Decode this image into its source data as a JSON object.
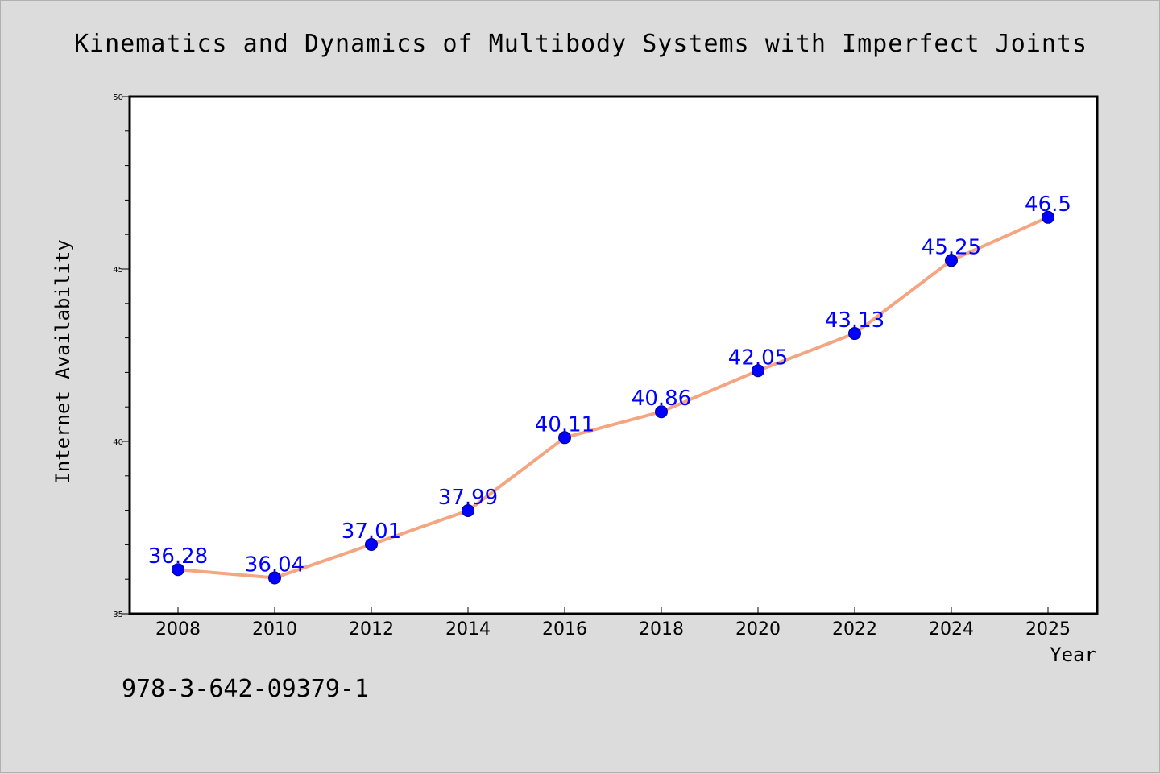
{
  "chart_data": {
    "type": "line",
    "title": "Kinematics and Dynamics of Multibody Systems with Imperfect Joints",
    "xlabel": "Year",
    "ylabel": "Internet Availability",
    "categories": [
      "2008",
      "2010",
      "2012",
      "2014",
      "2016",
      "2018",
      "2020",
      "2022",
      "2024",
      "2025"
    ],
    "series": [
      {
        "values": [
          36.28,
          36.04,
          37.01,
          37.99,
          40.11,
          40.86,
          42.05,
          43.13,
          45.25,
          46.5
        ],
        "labels": [
          "36.28",
          "36.04",
          "37.01",
          "37.99",
          "40.11",
          "40.86",
          "42.05",
          "43.13",
          "45.25",
          "46.5"
        ]
      }
    ],
    "ylim": [
      35,
      50
    ],
    "yticks": [
      35,
      40,
      45,
      50
    ],
    "ytick_labels": [
      "35",
      "40",
      "45",
      "50"
    ],
    "grid": false,
    "legend": "none",
    "colors": {
      "line": "#f4a582",
      "marker": "#0000ff",
      "marker_edge": "#00008b",
      "data_label": "#0000ff",
      "background": "#dcdcdc",
      "plot_background": "#ffffff"
    }
  },
  "footer": {
    "isbn": "978-3-642-09379-1"
  }
}
